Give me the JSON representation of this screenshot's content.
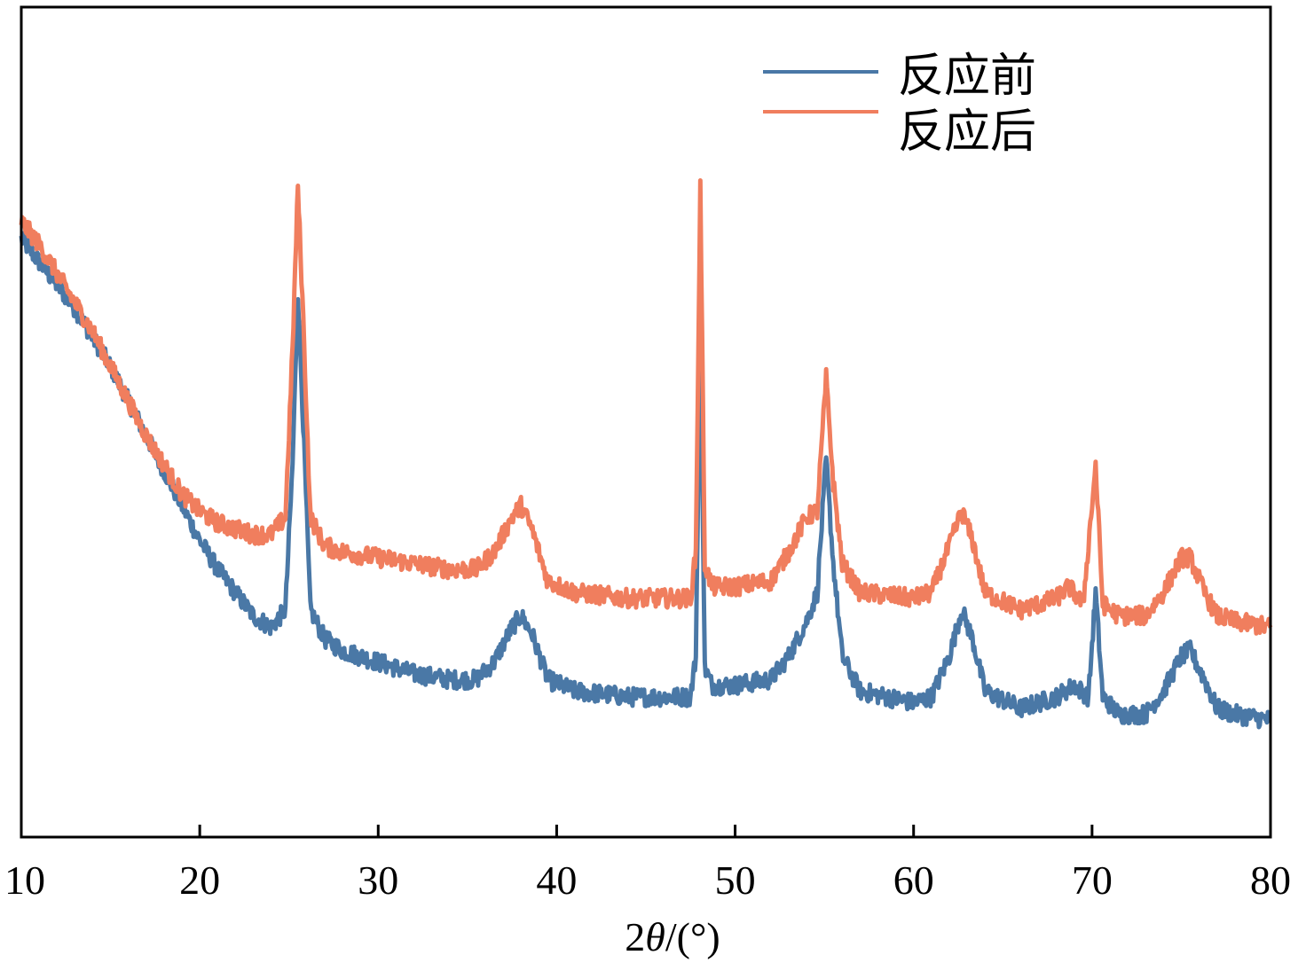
{
  "chart_data": {
    "type": "line",
    "xlabel_prefix": "2",
    "xlabel_symbol": "θ",
    "xlabel_suffix": "/(°)",
    "ylabel": "",
    "xlim": [
      10,
      80
    ],
    "ylim": [
      0,
      100
    ],
    "x_ticks": [
      10,
      20,
      30,
      40,
      50,
      60,
      70,
      80
    ],
    "y_ticks_shown": false,
    "grid": false,
    "legend_position": "top-right",
    "series": [
      {
        "name": "反应前",
        "color": "#4a78a6",
        "points": [
          [
            10,
            94
          ],
          [
            11,
            90
          ],
          [
            12,
            86
          ],
          [
            13,
            82
          ],
          [
            14,
            77
          ],
          [
            15,
            72
          ],
          [
            16,
            66
          ],
          [
            17,
            60
          ],
          [
            18,
            54
          ],
          [
            19,
            48
          ],
          [
            20,
            42
          ],
          [
            21,
            37
          ],
          [
            22,
            33
          ],
          [
            23,
            29
          ],
          [
            24,
            27
          ],
          [
            24.8,
            30
          ],
          [
            25.2,
            55
          ],
          [
            25.5,
            85
          ],
          [
            25.8,
            62
          ],
          [
            26.2,
            30
          ],
          [
            27,
            25
          ],
          [
            28,
            23
          ],
          [
            30,
            21
          ],
          [
            32,
            19
          ],
          [
            34,
            18
          ],
          [
            35.5,
            18
          ],
          [
            36.5,
            21
          ],
          [
            37.5,
            27
          ],
          [
            38,
            29
          ],
          [
            38.6,
            26
          ],
          [
            39.5,
            18
          ],
          [
            41,
            16
          ],
          [
            44,
            15
          ],
          [
            47.5,
            15
          ],
          [
            47.8,
            22
          ],
          [
            48.05,
            82
          ],
          [
            48.3,
            20
          ],
          [
            48.7,
            17
          ],
          [
            50,
            17
          ],
          [
            52,
            18
          ],
          [
            53,
            22
          ],
          [
            54,
            28
          ],
          [
            54.6,
            33
          ],
          [
            55.1,
            56
          ],
          [
            55.5,
            38
          ],
          [
            56,
            22
          ],
          [
            57,
            16
          ],
          [
            60,
            14
          ],
          [
            61,
            15
          ],
          [
            62,
            22
          ],
          [
            62.7,
            30
          ],
          [
            63.3,
            25
          ],
          [
            64,
            16
          ],
          [
            66,
            13
          ],
          [
            68,
            15
          ],
          [
            69,
            17
          ],
          [
            69.8,
            15
          ],
          [
            70.2,
            33
          ],
          [
            70.6,
            15
          ],
          [
            71.5,
            12
          ],
          [
            73,
            12
          ],
          [
            74,
            16
          ],
          [
            75,
            22
          ],
          [
            75.5,
            23
          ],
          [
            76.3,
            18
          ],
          [
            77,
            13
          ],
          [
            78,
            12
          ],
          [
            80,
            11
          ]
        ]
      },
      {
        "name": "反应后",
        "color": "#f07e5e",
        "points": [
          [
            10,
            97
          ],
          [
            11,
            93
          ],
          [
            12,
            88
          ],
          [
            13,
            83
          ],
          [
            14,
            78
          ],
          [
            15,
            72
          ],
          [
            16,
            66
          ],
          [
            17,
            60
          ],
          [
            18,
            55
          ],
          [
            19,
            50
          ],
          [
            20,
            47
          ],
          [
            21,
            45
          ],
          [
            22,
            44
          ],
          [
            23,
            43
          ],
          [
            24,
            43
          ],
          [
            24.8,
            46
          ],
          [
            25.2,
            75
          ],
          [
            25.5,
            103
          ],
          [
            25.8,
            80
          ],
          [
            26.2,
            46
          ],
          [
            27,
            41
          ],
          [
            28,
            40
          ],
          [
            30,
            39
          ],
          [
            32,
            38
          ],
          [
            34,
            37
          ],
          [
            35.5,
            37
          ],
          [
            36.5,
            40
          ],
          [
            37.5,
            46
          ],
          [
            38,
            48
          ],
          [
            38.6,
            44
          ],
          [
            39.5,
            35
          ],
          [
            41,
            33
          ],
          [
            44,
            32
          ],
          [
            47.5,
            32
          ],
          [
            47.8,
            40
          ],
          [
            48.05,
            103
          ],
          [
            48.3,
            38
          ],
          [
            48.7,
            34
          ],
          [
            50,
            34
          ],
          [
            52,
            35
          ],
          [
            53,
            40
          ],
          [
            54,
            46
          ],
          [
            54.6,
            47
          ],
          [
            55.1,
            70
          ],
          [
            55.5,
            52
          ],
          [
            56,
            38
          ],
          [
            57,
            33
          ],
          [
            60,
            32
          ],
          [
            61,
            33
          ],
          [
            62,
            41
          ],
          [
            62.7,
            47
          ],
          [
            63.3,
            42
          ],
          [
            64,
            33
          ],
          [
            66,
            30
          ],
          [
            68,
            32
          ],
          [
            68.7,
            34
          ],
          [
            69.5,
            31
          ],
          [
            70.2,
            55
          ],
          [
            70.6,
            31
          ],
          [
            71.5,
            29
          ],
          [
            73,
            29
          ],
          [
            74,
            33
          ],
          [
            75,
            39
          ],
          [
            75.5,
            39
          ],
          [
            76.3,
            33
          ],
          [
            77,
            29
          ],
          [
            78,
            28
          ],
          [
            80,
            27
          ]
        ]
      }
    ]
  }
}
